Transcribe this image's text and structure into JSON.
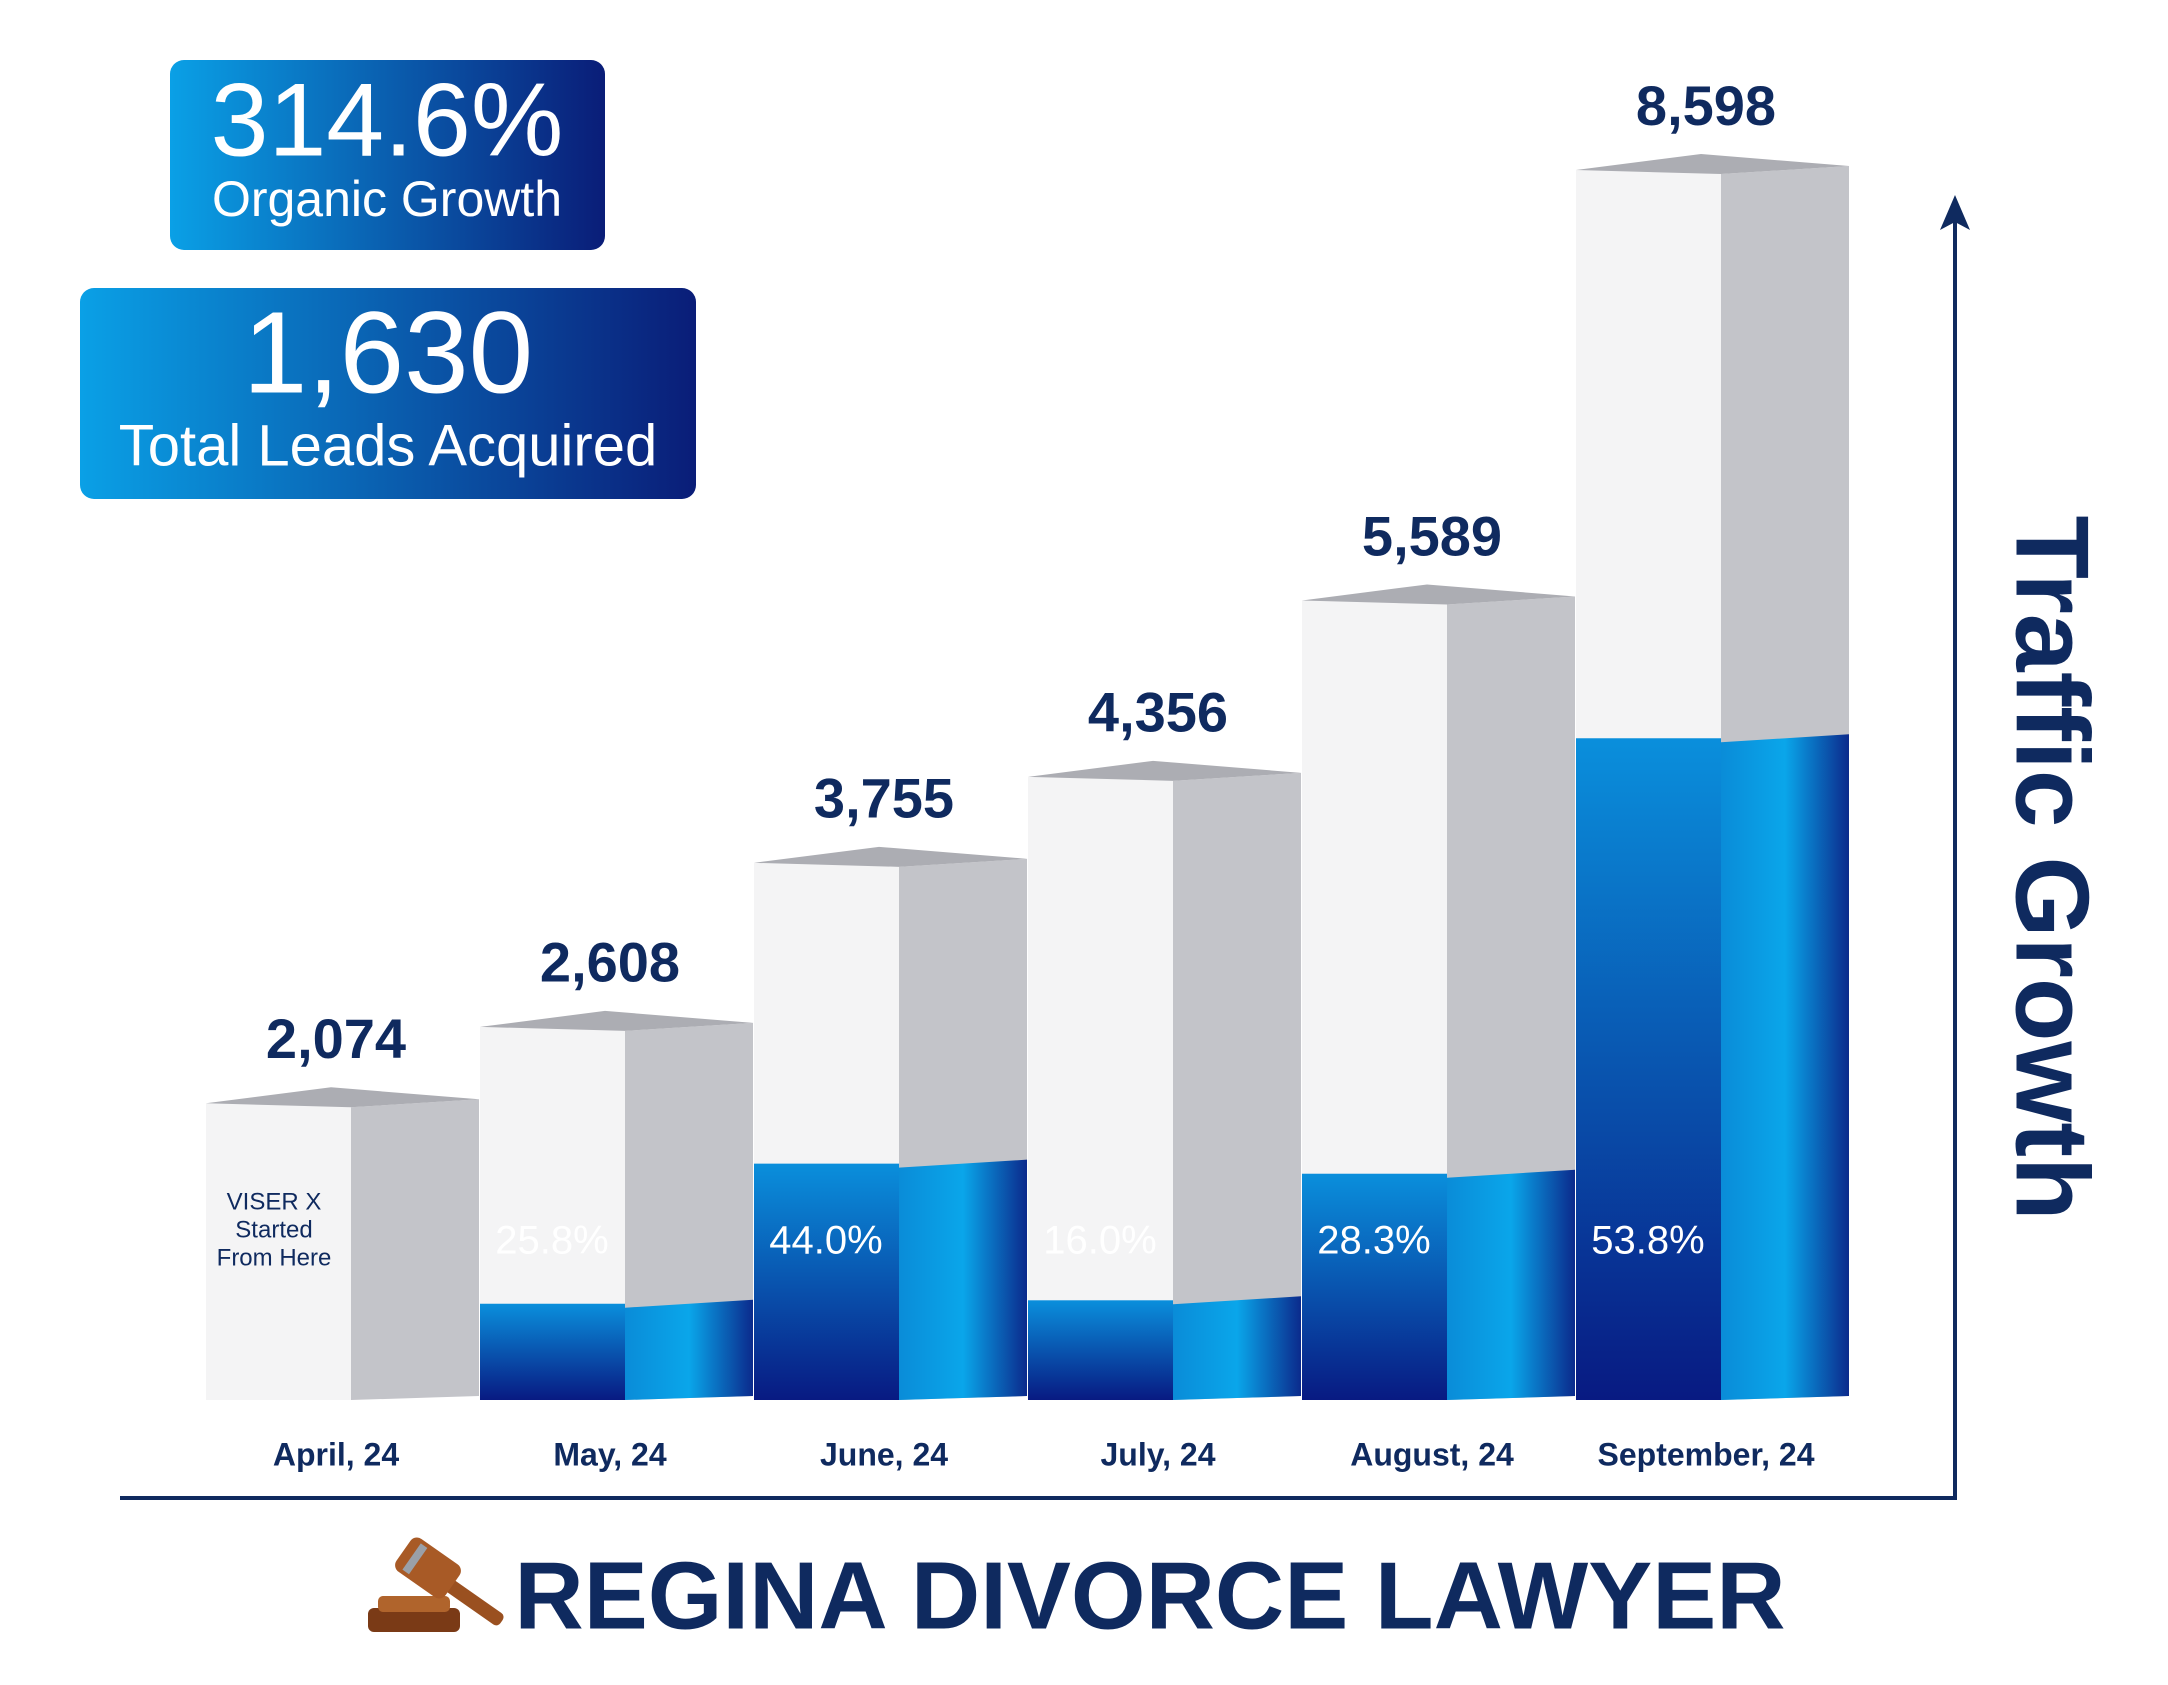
{
  "badges": [
    {
      "value": "314.6%",
      "label": "Organic Growth"
    },
    {
      "value": "1,630",
      "label": "Total Leads Acquired"
    }
  ],
  "chart_data": {
    "type": "bar",
    "title": "REGINA DIVORCE LAWYER",
    "y_label": "Traffic Growth",
    "categories": [
      "April, 24",
      "May, 24",
      "June, 24",
      "July, 24",
      "August, 24",
      "September, 24"
    ],
    "values": [
      2074,
      2608,
      3755,
      4356,
      5589,
      8598
    ],
    "value_labels": [
      "2,074",
      "2,608",
      "3,755",
      "4,356",
      "5,589",
      "8,598"
    ],
    "growth": {
      "values": [
        null,
        25.8,
        44.0,
        16.0,
        28.3,
        53.8
      ],
      "value_labels": [
        null,
        "25.8%",
        "44.0%",
        "16.0%",
        "28.3%",
        "53.8%"
      ]
    },
    "annotation": [
      "VISER X",
      "Started",
      "From Here"
    ]
  }
}
